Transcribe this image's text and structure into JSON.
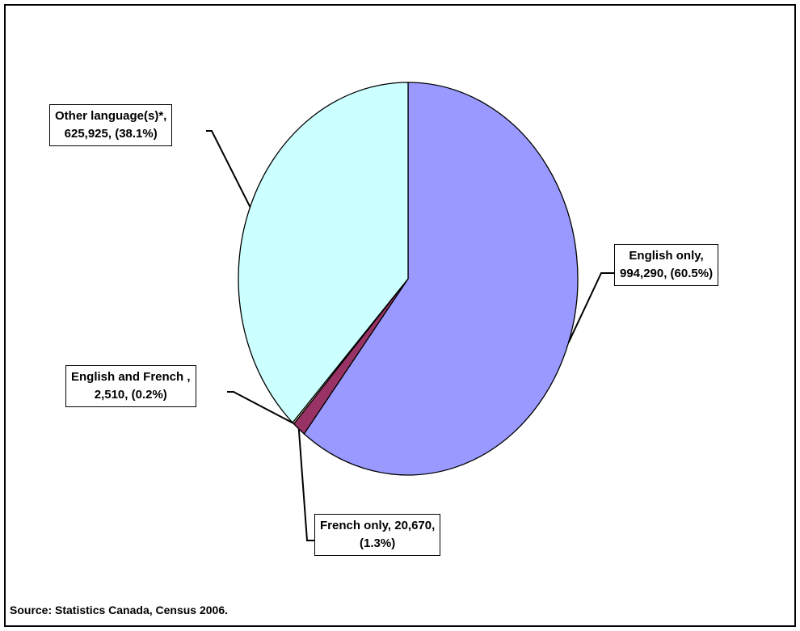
{
  "chart_data": {
    "type": "pie",
    "title": "",
    "slices": [
      {
        "key": "english",
        "label": "English only",
        "count": "994,290",
        "pct": "(60.5%)",
        "value": 994290,
        "percent": 60.5,
        "color": "#9999ff",
        "line1": "English only,",
        "line2": "994,290, (60.5%)"
      },
      {
        "key": "french",
        "label": "French only",
        "count": "20,670",
        "pct": "(1.3%)",
        "value": 20670,
        "percent": 1.3,
        "color": "#993366",
        "line1": "French only, 20,670,",
        "line2": "(1.3%)"
      },
      {
        "key": "both",
        "label": "English and French",
        "count": "2,510",
        "pct": "(0.2%)",
        "value": 2510,
        "percent": 0.2,
        "color": "#ffffcc",
        "line1": "English and French ,",
        "line2": "2,510, (0.2%)"
      },
      {
        "key": "other",
        "label": "Other language(s)*",
        "count": "625,925",
        "pct": "(38.1%)",
        "value": 625925,
        "percent": 38.1,
        "color": "#ccffff",
        "line1": "Other  language(s)*,",
        "line2": "625,925, (38.1%)"
      }
    ],
    "start_angle": "12 o'clock",
    "direction": "clockwise"
  },
  "source_note": "Source: Statistics Canada, Census 2006."
}
